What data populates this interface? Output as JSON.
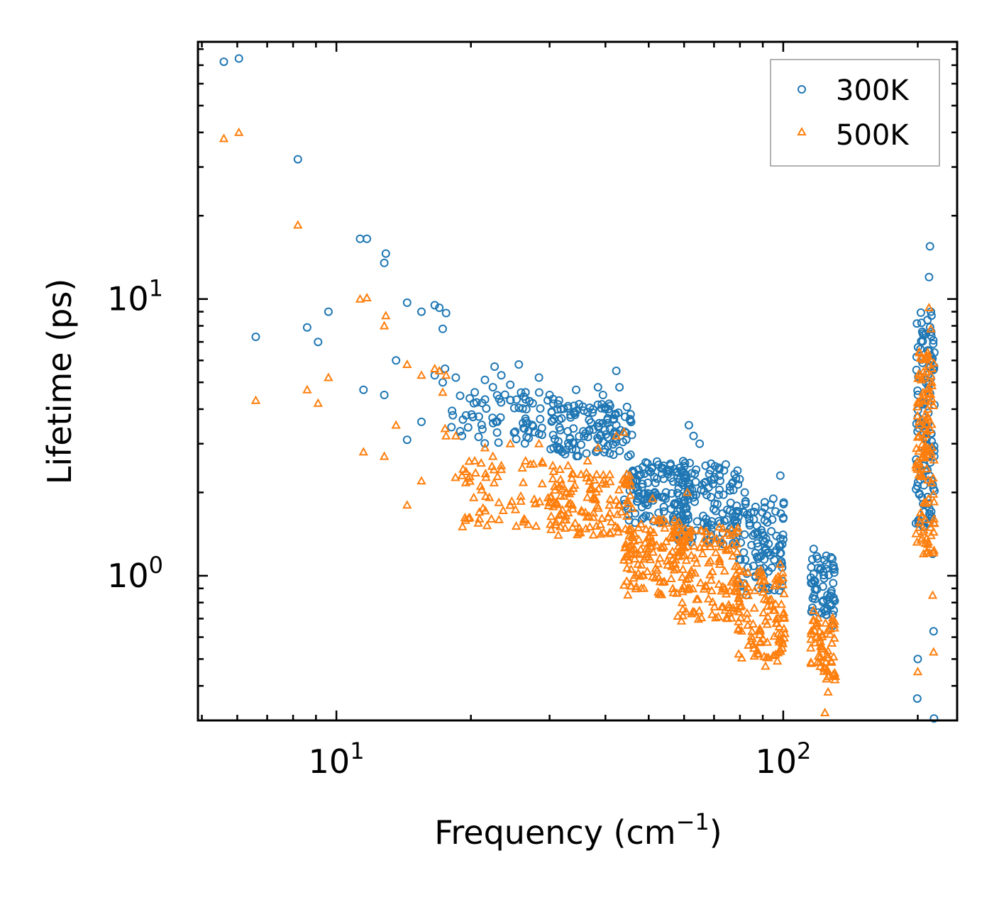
{
  "chart_data": {
    "type": "scatter",
    "title": "",
    "xlabel": "Frequency (cm",
    "xlabel_sup": "−1",
    "xlabel_end": ")",
    "ylabel": "Lifetime (ps)",
    "xscale": "log",
    "yscale": "log",
    "xlim": [
      4.9,
      245
    ],
    "ylim": [
      0.3,
      85
    ],
    "x_ticks": [
      {
        "value": 10,
        "base": "10",
        "exp": "1"
      },
      {
        "value": 100,
        "base": "10",
        "exp": "2"
      }
    ],
    "y_ticks": [
      {
        "value": 1,
        "base": "10",
        "exp": "0"
      },
      {
        "value": 10,
        "base": "10",
        "exp": "1"
      }
    ],
    "legend_position": "top-right",
    "series": [
      {
        "name": "300K",
        "marker": "circle",
        "color": "#1f77b4",
        "points": [
          [
            5.6,
            72
          ],
          [
            6.05,
            74
          ],
          [
            6.6,
            7.3
          ],
          [
            8.2,
            32
          ],
          [
            8.6,
            7.9
          ],
          [
            9.1,
            7.0
          ],
          [
            9.6,
            9.0
          ],
          [
            11.3,
            16.5
          ],
          [
            11.7,
            16.5
          ],
          [
            11.5,
            4.7
          ],
          [
            12.8,
            13.5
          ],
          [
            12.9,
            14.6
          ],
          [
            12.8,
            4.5
          ],
          [
            13.6,
            6.0
          ],
          [
            14.4,
            9.7
          ],
          [
            14.4,
            3.1
          ],
          [
            15.5,
            9.0
          ],
          [
            15.5,
            3.6
          ],
          [
            16.6,
            9.5
          ],
          [
            17.0,
            9.3
          ],
          [
            17.3,
            7.8
          ],
          [
            17.6,
            8.9
          ],
          [
            17.5,
            5.6
          ],
          [
            16.6,
            5.3
          ],
          [
            17.3,
            5.0
          ],
          [
            18.5,
            5.2
          ],
          [
            19.1,
            3.2
          ],
          [
            19.5,
            3.8
          ],
          [
            20.4,
            4.6
          ],
          [
            21.5,
            5.1
          ],
          [
            22.4,
            4.8
          ],
          [
            22.6,
            5.7
          ],
          [
            23.4,
            5.3
          ],
          [
            24.5,
            4.9
          ],
          [
            25.6,
            5.8
          ],
          [
            26.5,
            4.6
          ],
          [
            27.5,
            4.2
          ],
          [
            28.4,
            5.2
          ],
          [
            30.0,
            4.5
          ],
          [
            31.5,
            4.3
          ],
          [
            33.0,
            4.1
          ],
          [
            34.4,
            4.7
          ],
          [
            36.5,
            3.9
          ],
          [
            38.5,
            4.8
          ],
          [
            39.5,
            4.5
          ],
          [
            40.6,
            4.0
          ],
          [
            42.3,
            5.5
          ],
          [
            43.0,
            4.8
          ],
          [
            45.0,
            2.7
          ],
          [
            47.0,
            2.2
          ],
          [
            50.0,
            2.4
          ],
          [
            54.0,
            2.5
          ],
          [
            57.0,
            1.6
          ],
          [
            61.5,
            3.5
          ],
          [
            63.0,
            3.2
          ],
          [
            65.0,
            3.0
          ],
          [
            67.0,
            2.5
          ],
          [
            72.0,
            2.3
          ],
          [
            76.0,
            2.1
          ],
          [
            79.0,
            2.4
          ],
          [
            82.0,
            2.0
          ],
          [
            86.0,
            1.7
          ],
          [
            95.0,
            1.9
          ],
          [
            98.5,
            2.3
          ],
          [
            99.5,
            1.3
          ],
          [
            117.0,
            1.25
          ],
          [
            121.0,
            1.05
          ],
          [
            125.0,
            1.1
          ],
          [
            129.0,
            0.66
          ],
          [
            200.0,
            0.5
          ],
          [
            199.5,
            0.36
          ],
          [
            206.0,
            1.5
          ],
          [
            207.0,
            3.5
          ],
          [
            212.0,
            12.0
          ],
          [
            213.0,
            15.5
          ],
          [
            214.0,
            9.0
          ],
          [
            215.0,
            6.0
          ],
          [
            216.0,
            1.2
          ],
          [
            217.0,
            0.63
          ],
          [
            217.5,
            0.305
          ]
        ],
        "bands": [
          [
            18.0,
            32.0,
            3.0,
            4.6,
            70
          ],
          [
            30.0,
            46.0,
            2.7,
            4.2,
            120
          ],
          [
            44.0,
            62.0,
            1.55,
            2.6,
            140
          ],
          [
            58.0,
            80.0,
            1.3,
            2.6,
            120
          ],
          [
            78.0,
            101.0,
            0.85,
            1.9,
            110
          ],
          [
            115.0,
            131.0,
            0.72,
            1.2,
            60
          ],
          [
            198.0,
            218.0,
            1.5,
            9.0,
            120
          ]
        ]
      },
      {
        "name": "500K",
        "marker": "triangle",
        "color": "#ff7f0e",
        "points": [
          [
            5.6,
            38
          ],
          [
            6.05,
            40
          ],
          [
            6.6,
            4.3
          ],
          [
            8.2,
            18.5
          ],
          [
            8.6,
            4.7
          ],
          [
            9.1,
            4.2
          ],
          [
            9.6,
            5.2
          ],
          [
            11.3,
            10.0
          ],
          [
            11.7,
            10.1
          ],
          [
            11.5,
            2.8
          ],
          [
            12.8,
            8.0
          ],
          [
            12.9,
            8.7
          ],
          [
            12.8,
            2.7
          ],
          [
            13.6,
            3.5
          ],
          [
            14.4,
            5.8
          ],
          [
            14.4,
            1.8
          ],
          [
            15.5,
            5.3
          ],
          [
            15.5,
            2.2
          ],
          [
            16.6,
            5.6
          ],
          [
            17.0,
            5.5
          ],
          [
            17.3,
            4.6
          ],
          [
            17.6,
            5.3
          ],
          [
            17.5,
            3.4
          ],
          [
            17.6,
            3.2
          ],
          [
            18.5,
            3.2
          ],
          [
            19.1,
            2.3
          ],
          [
            20.4,
            2.6
          ],
          [
            21.5,
            2.9
          ],
          [
            22.4,
            2.7
          ],
          [
            23.4,
            2.5
          ],
          [
            24.5,
            3.0
          ],
          [
            26.5,
            2.6
          ],
          [
            28.4,
            3.0
          ],
          [
            30.5,
            2.5
          ],
          [
            33.0,
            2.5
          ],
          [
            36.5,
            2.6
          ],
          [
            38.5,
            2.9
          ],
          [
            42.3,
            3.2
          ],
          [
            44.0,
            3.3
          ],
          [
            46.0,
            1.75
          ],
          [
            47.5,
            1.35
          ],
          [
            51.0,
            1.9
          ],
          [
            54.0,
            1.6
          ],
          [
            61.0,
            2.0
          ],
          [
            66.0,
            1.2
          ],
          [
            72.0,
            1.15
          ],
          [
            80.0,
            1.05
          ],
          [
            90.0,
            1.0
          ],
          [
            95.0,
            0.75
          ],
          [
            98.5,
            1.1
          ],
          [
            99.5,
            0.57
          ],
          [
            117.0,
            0.75
          ],
          [
            121.0,
            0.47
          ],
          [
            124.0,
            0.32
          ],
          [
            126.0,
            0.38
          ],
          [
            200.0,
            0.45
          ],
          [
            206.0,
            1.2
          ],
          [
            207.0,
            2.8
          ],
          [
            212.0,
            9.3
          ],
          [
            214.0,
            7.8
          ],
          [
            215.0,
            5.0
          ],
          [
            216.0,
            0.85
          ],
          [
            217.0,
            0.53
          ]
        ],
        "bands": [
          [
            18.0,
            32.0,
            1.5,
            2.6,
            70
          ],
          [
            30.0,
            46.0,
            1.4,
            2.4,
            120
          ],
          [
            44.0,
            62.0,
            0.85,
            1.6,
            140
          ],
          [
            58.0,
            80.0,
            0.68,
            1.5,
            120
          ],
          [
            78.0,
            101.0,
            0.47,
            1.05,
            110
          ],
          [
            115.0,
            131.0,
            0.42,
            0.72,
            60
          ],
          [
            198.0,
            218.0,
            1.2,
            6.5,
            120
          ]
        ]
      }
    ]
  }
}
